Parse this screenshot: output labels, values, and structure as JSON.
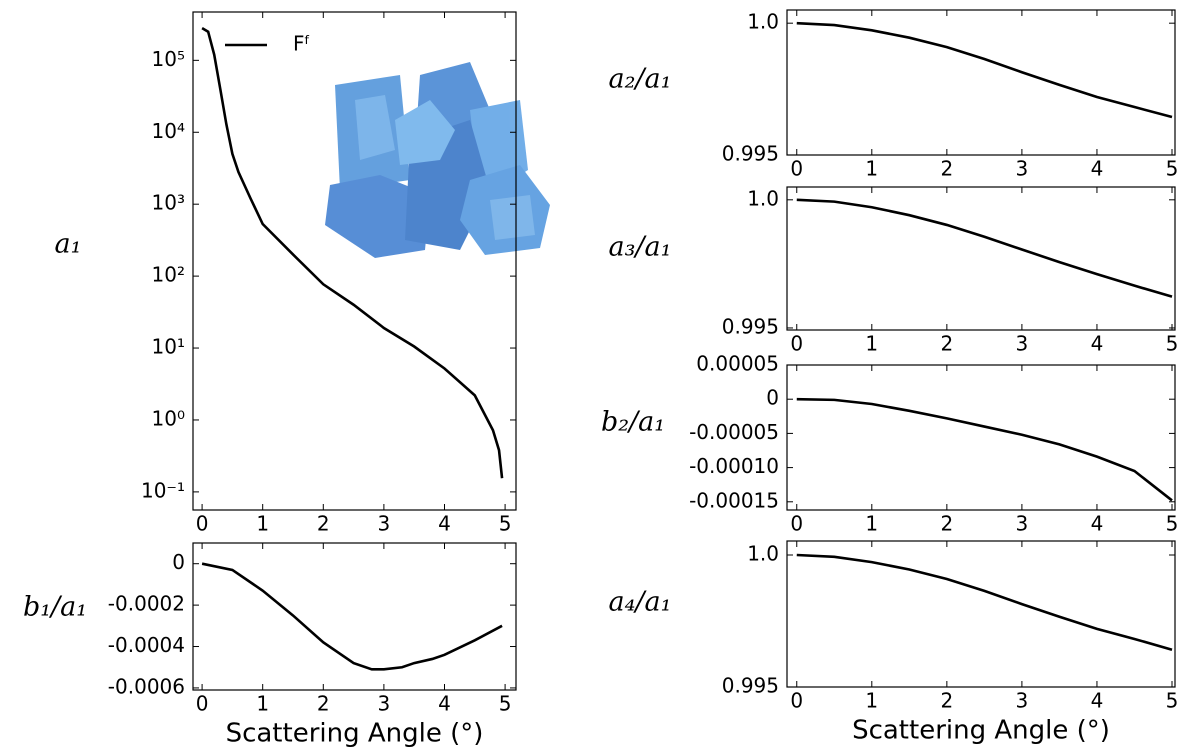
{
  "chart_data": [
    {
      "type": "line",
      "ylabel": "a₁",
      "log_y": true,
      "legend": "upper left",
      "xlim": [
        -0.15,
        5.18
      ],
      "xticks": [
        0,
        1,
        2,
        3,
        4,
        5
      ],
      "ylim": [
        0.056,
        470000
      ],
      "yticks": [
        {
          "value": 100000,
          "label": "10⁵"
        },
        {
          "value": 10000,
          "label": "10⁴"
        },
        {
          "value": 1000,
          "label": "10³"
        },
        {
          "value": 100,
          "label": "10²"
        },
        {
          "value": 10,
          "label": "10¹"
        },
        {
          "value": 1,
          "label": "10⁰"
        },
        {
          "value": 0.1,
          "label": "10⁻¹"
        }
      ],
      "x": [
        0,
        0.1,
        0.2,
        0.3,
        0.4,
        0.5,
        0.6,
        0.8,
        1,
        1.5,
        2,
        2.5,
        3,
        3.5,
        4,
        4.5,
        4.8,
        4.9,
        4.95
      ],
      "series": [
        {
          "name": "Fᶠ",
          "color": "#000000",
          "values": [
            280000,
            250000,
            120000,
            40000,
            13000,
            5000,
            2800,
            1200,
            530,
            200,
            77,
            40,
            19,
            10.5,
            5.2,
            2.2,
            0.72,
            0.38,
            0.155
          ]
        }
      ]
    },
    {
      "type": "line",
      "ylabel": "b₁/a₁",
      "xlabel": "Scattering Angle (°)",
      "xlim": [
        -0.15,
        5.18
      ],
      "xticks": [
        0,
        1,
        2,
        3,
        4,
        5
      ],
      "ylim": [
        -0.00061,
        0.0001
      ],
      "yticks": [
        0,
        -0.0002,
        -0.0004,
        -0.0006
      ],
      "x": [
        0,
        0.5,
        1,
        1.5,
        2,
        2.5,
        2.8,
        3,
        3.3,
        3.5,
        3.8,
        4,
        4.5,
        4.95
      ],
      "color": "#000000",
      "values": [
        0,
        -3e-05,
        -0.00013,
        -0.00025,
        -0.00038,
        -0.00048,
        -0.00051,
        -0.00051,
        -0.0005,
        -0.00048,
        -0.00046,
        -0.00044,
        -0.00037,
        -0.0003
      ]
    },
    {
      "type": "line",
      "ylabel": "a₂/a₁",
      "xlim": [
        -0.13,
        5.04
      ],
      "xticks": [
        0,
        1,
        2,
        3,
        4,
        5
      ],
      "ylim": [
        0.995,
        1.0005
      ],
      "yticks": [
        {
          "value": 1,
          "label": "1.0"
        },
        0.995
      ],
      "x": [
        0,
        0.5,
        1,
        1.5,
        2,
        2.5,
        3,
        3.5,
        4,
        4.5,
        5
      ],
      "color": "#000000",
      "values": [
        1,
        0.99993,
        0.99973,
        0.99945,
        0.99909,
        0.99864,
        0.99814,
        0.99766,
        0.9972,
        0.99682,
        0.99644
      ]
    },
    {
      "type": "line",
      "ylabel": "a₃/a₁",
      "xlim": [
        -0.13,
        5.04
      ],
      "xticks": [
        0,
        1,
        2,
        3,
        4,
        5
      ],
      "ylim": [
        0.99492,
        1.0005
      ],
      "yticks": [
        {
          "value": 1,
          "label": "1.0"
        },
        0.995
      ],
      "x": [
        0,
        0.5,
        1,
        1.5,
        2,
        2.5,
        3,
        3.5,
        4,
        4.5,
        5
      ],
      "color": "#000000",
      "values": [
        1,
        0.99993,
        0.99971,
        0.9994,
        0.99902,
        0.99856,
        0.99806,
        0.99757,
        0.9971,
        0.99665,
        0.99622
      ]
    },
    {
      "type": "line",
      "ylabel": "b₂/a₁",
      "xlim": [
        -0.13,
        5.04
      ],
      "xticks": [
        0,
        1,
        2,
        3,
        4,
        5
      ],
      "ylim": [
        -0.000162,
        5e-05
      ],
      "yticks": [
        5e-05,
        0,
        -5e-05,
        {
          "value": -0.0001,
          "label": "-0.00010"
        },
        -0.00015
      ],
      "x": [
        0,
        0.5,
        1,
        1.5,
        2,
        2.5,
        3,
        3.5,
        4,
        4.5,
        5
      ],
      "color": "#000000",
      "values": [
        0,
        -1e-06,
        -7e-06,
        -1.7e-05,
        -2.8e-05,
        -4e-05,
        -5.2e-05,
        -6.6e-05,
        -8.4e-05,
        -0.000105,
        -0.000148
      ]
    },
    {
      "type": "line",
      "ylabel": "a₄/a₁",
      "xlabel": "Scattering Angle (°)",
      "xlim": [
        -0.13,
        5.04
      ],
      "xticks": [
        0,
        1,
        2,
        3,
        4,
        5
      ],
      "ylim": [
        0.995,
        1.00053
      ],
      "yticks": [
        {
          "value": 1,
          "label": "1.0"
        },
        0.995
      ],
      "x": [
        0,
        0.5,
        1,
        1.5,
        2,
        2.5,
        3,
        3.5,
        4,
        4.5,
        5
      ],
      "color": "#000000",
      "values": [
        1,
        0.99993,
        0.99973,
        0.99945,
        0.99909,
        0.99864,
        0.99814,
        0.99766,
        0.9972,
        0.99682,
        0.99641
      ]
    }
  ]
}
